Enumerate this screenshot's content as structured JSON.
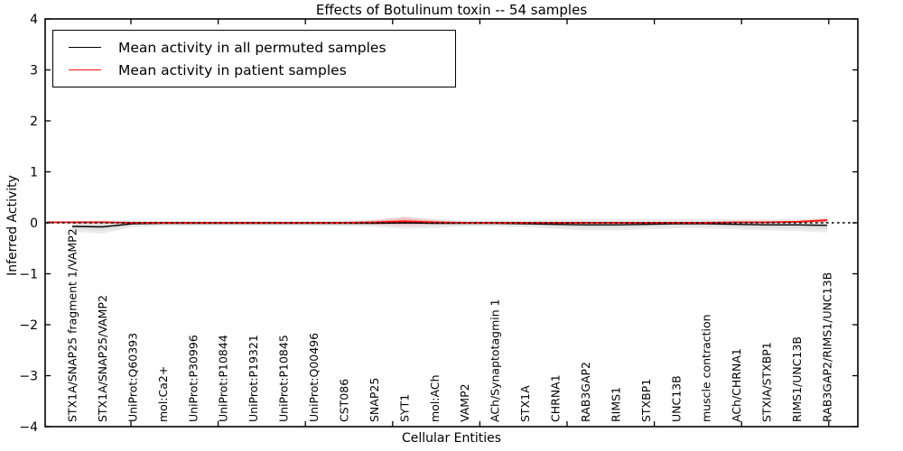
{
  "chart_data": {
    "type": "line",
    "title": "Effects of Botulinum toxin -- 54 samples",
    "xlabel": "Cellular Entities",
    "ylabel": "Inferred Activity",
    "ylim": [
      -4,
      4
    ],
    "ytick_labels": [
      "4",
      "3",
      "2",
      "1",
      "0",
      "−1",
      "−2",
      "−3",
      "−4"
    ],
    "grid": false,
    "legend_position": "upper left",
    "categories": [
      "STX1A/SNAP25 fragment 1/VAMP2",
      "STX1A/SNAP25/VAMP2",
      "UniProt:Q60393",
      "mol:Ca2+",
      "UniProt:P30996",
      "UniProt:P10844",
      "UniProt:P19321",
      "UniProt:P10845",
      "UniProt:Q00496",
      "CST086",
      "SNAP25",
      "SYT1",
      "mol:ACh",
      "VAMP2",
      "ACh/Synaptotagmin 1",
      "STX1A",
      "CHRNA1",
      "RAB3GAP2",
      "RIMS1",
      "STXBP1",
      "UNC13B",
      "muscle contraction",
      "ACh/CHRNA1",
      "STXIA/STXBP1",
      "RIMS1/UNC13B",
      "RAB3GAP2/RIMS1/UNC13B"
    ],
    "series": [
      {
        "name": "Mean activity in all permuted samples",
        "color": "#000000",
        "line_style": "solid",
        "band_color": "#d8d8d8",
        "values": [
          -0.07,
          -0.08,
          -0.02,
          -0.01,
          -0.01,
          -0.01,
          -0.01,
          -0.01,
          -0.01,
          -0.01,
          -0.01,
          0.0,
          -0.01,
          -0.01,
          -0.01,
          -0.02,
          -0.03,
          -0.04,
          -0.04,
          -0.03,
          -0.02,
          -0.02,
          -0.03,
          -0.04,
          -0.04,
          -0.05
        ],
        "band_halfwidth": [
          0.1,
          0.13,
          0.07,
          0.05,
          0.05,
          0.05,
          0.05,
          0.05,
          0.05,
          0.06,
          0.07,
          0.12,
          0.09,
          0.06,
          0.06,
          0.07,
          0.09,
          0.11,
          0.11,
          0.1,
          0.09,
          0.09,
          0.1,
          0.11,
          0.12,
          0.14
        ]
      },
      {
        "name": "Mean activity in patient samples",
        "color": "#ff1111",
        "line_style": "solid",
        "band_color": "#f2b4b4",
        "values": [
          0.01,
          0.01,
          0.0,
          0.0,
          0.0,
          0.0,
          0.0,
          0.0,
          0.0,
          0.0,
          0.01,
          0.03,
          0.01,
          0.0,
          0.0,
          0.0,
          0.0,
          0.0,
          0.0,
          0.0,
          0.0,
          0.0,
          0.01,
          0.01,
          0.02,
          0.05
        ],
        "band_halfwidth": [
          0.02,
          0.02,
          0.01,
          0.01,
          0.01,
          0.01,
          0.01,
          0.01,
          0.01,
          0.01,
          0.04,
          0.09,
          0.04,
          0.01,
          0.01,
          0.01,
          0.01,
          0.01,
          0.01,
          0.01,
          0.01,
          0.01,
          0.01,
          0.02,
          0.02,
          0.04
        ]
      }
    ],
    "reference_line": {
      "y": 0,
      "color": "#000000",
      "style": "dotted"
    }
  },
  "legend": {
    "entries": [
      {
        "label": "Mean activity in all permuted samples",
        "color": "#000000"
      },
      {
        "label": "Mean activity in patient samples",
        "color": "#ff1111"
      }
    ]
  }
}
